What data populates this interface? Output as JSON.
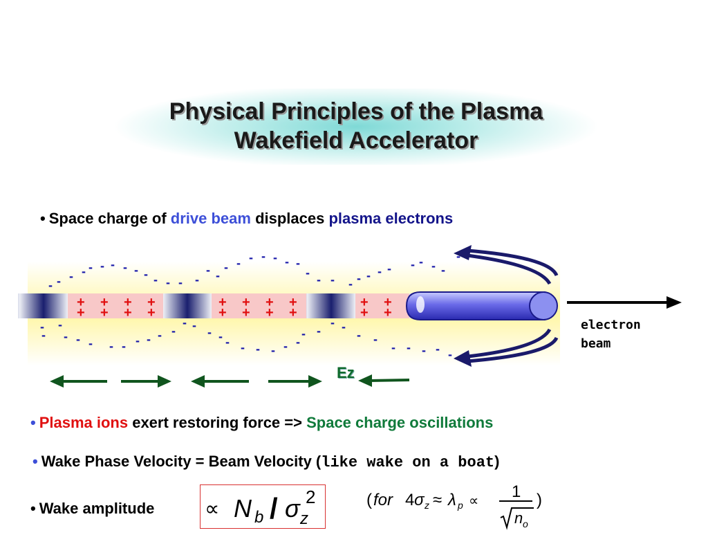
{
  "slide": {
    "title_line1": "Physical Principles of the Plasma",
    "title_line2": "Wakefield  Accelerator"
  },
  "bullets": {
    "b1": {
      "prefix": "Space charge of ",
      "drive_beam": "drive beam",
      "mid": " displaces ",
      "plasma_electrons": "plasma electrons"
    },
    "b2": {
      "plasma_ions": "Plasma ions",
      "mid": " exert restoring force => ",
      "oscillations": "Space charge oscillations"
    },
    "b3": {
      "text": "Wake Phase Velocity = Beam Velocity (",
      "mono": "like wake on a boat",
      "close": ")"
    },
    "b4": {
      "text": "Wake amplitude"
    }
  },
  "diagram": {
    "electron_beam_line1": "electron",
    "electron_beam_line2": "beam",
    "ez_label": "Ez",
    "plus_sign": "+",
    "minus_sign": "-",
    "colors": {
      "plus": "#e01010",
      "minus": "#1a1aaa",
      "arrow": "#10551e",
      "beam": "#4a4ad8",
      "wake_glow": "#fff7a8"
    }
  },
  "formula": {
    "propto": "∝",
    "N": "N",
    "b": "b",
    "slash": "/",
    "sigma": "σ",
    "z": "z",
    "exp": "2"
  },
  "aside": {
    "open": "(",
    "for": "for",
    "four": "4",
    "sigma": "σ",
    "z": "z",
    "approx": "≈",
    "lambda": "λ",
    "p": "p",
    "propto": "∝",
    "one": "1",
    "n": "n",
    "o": "o",
    "close": ")"
  }
}
